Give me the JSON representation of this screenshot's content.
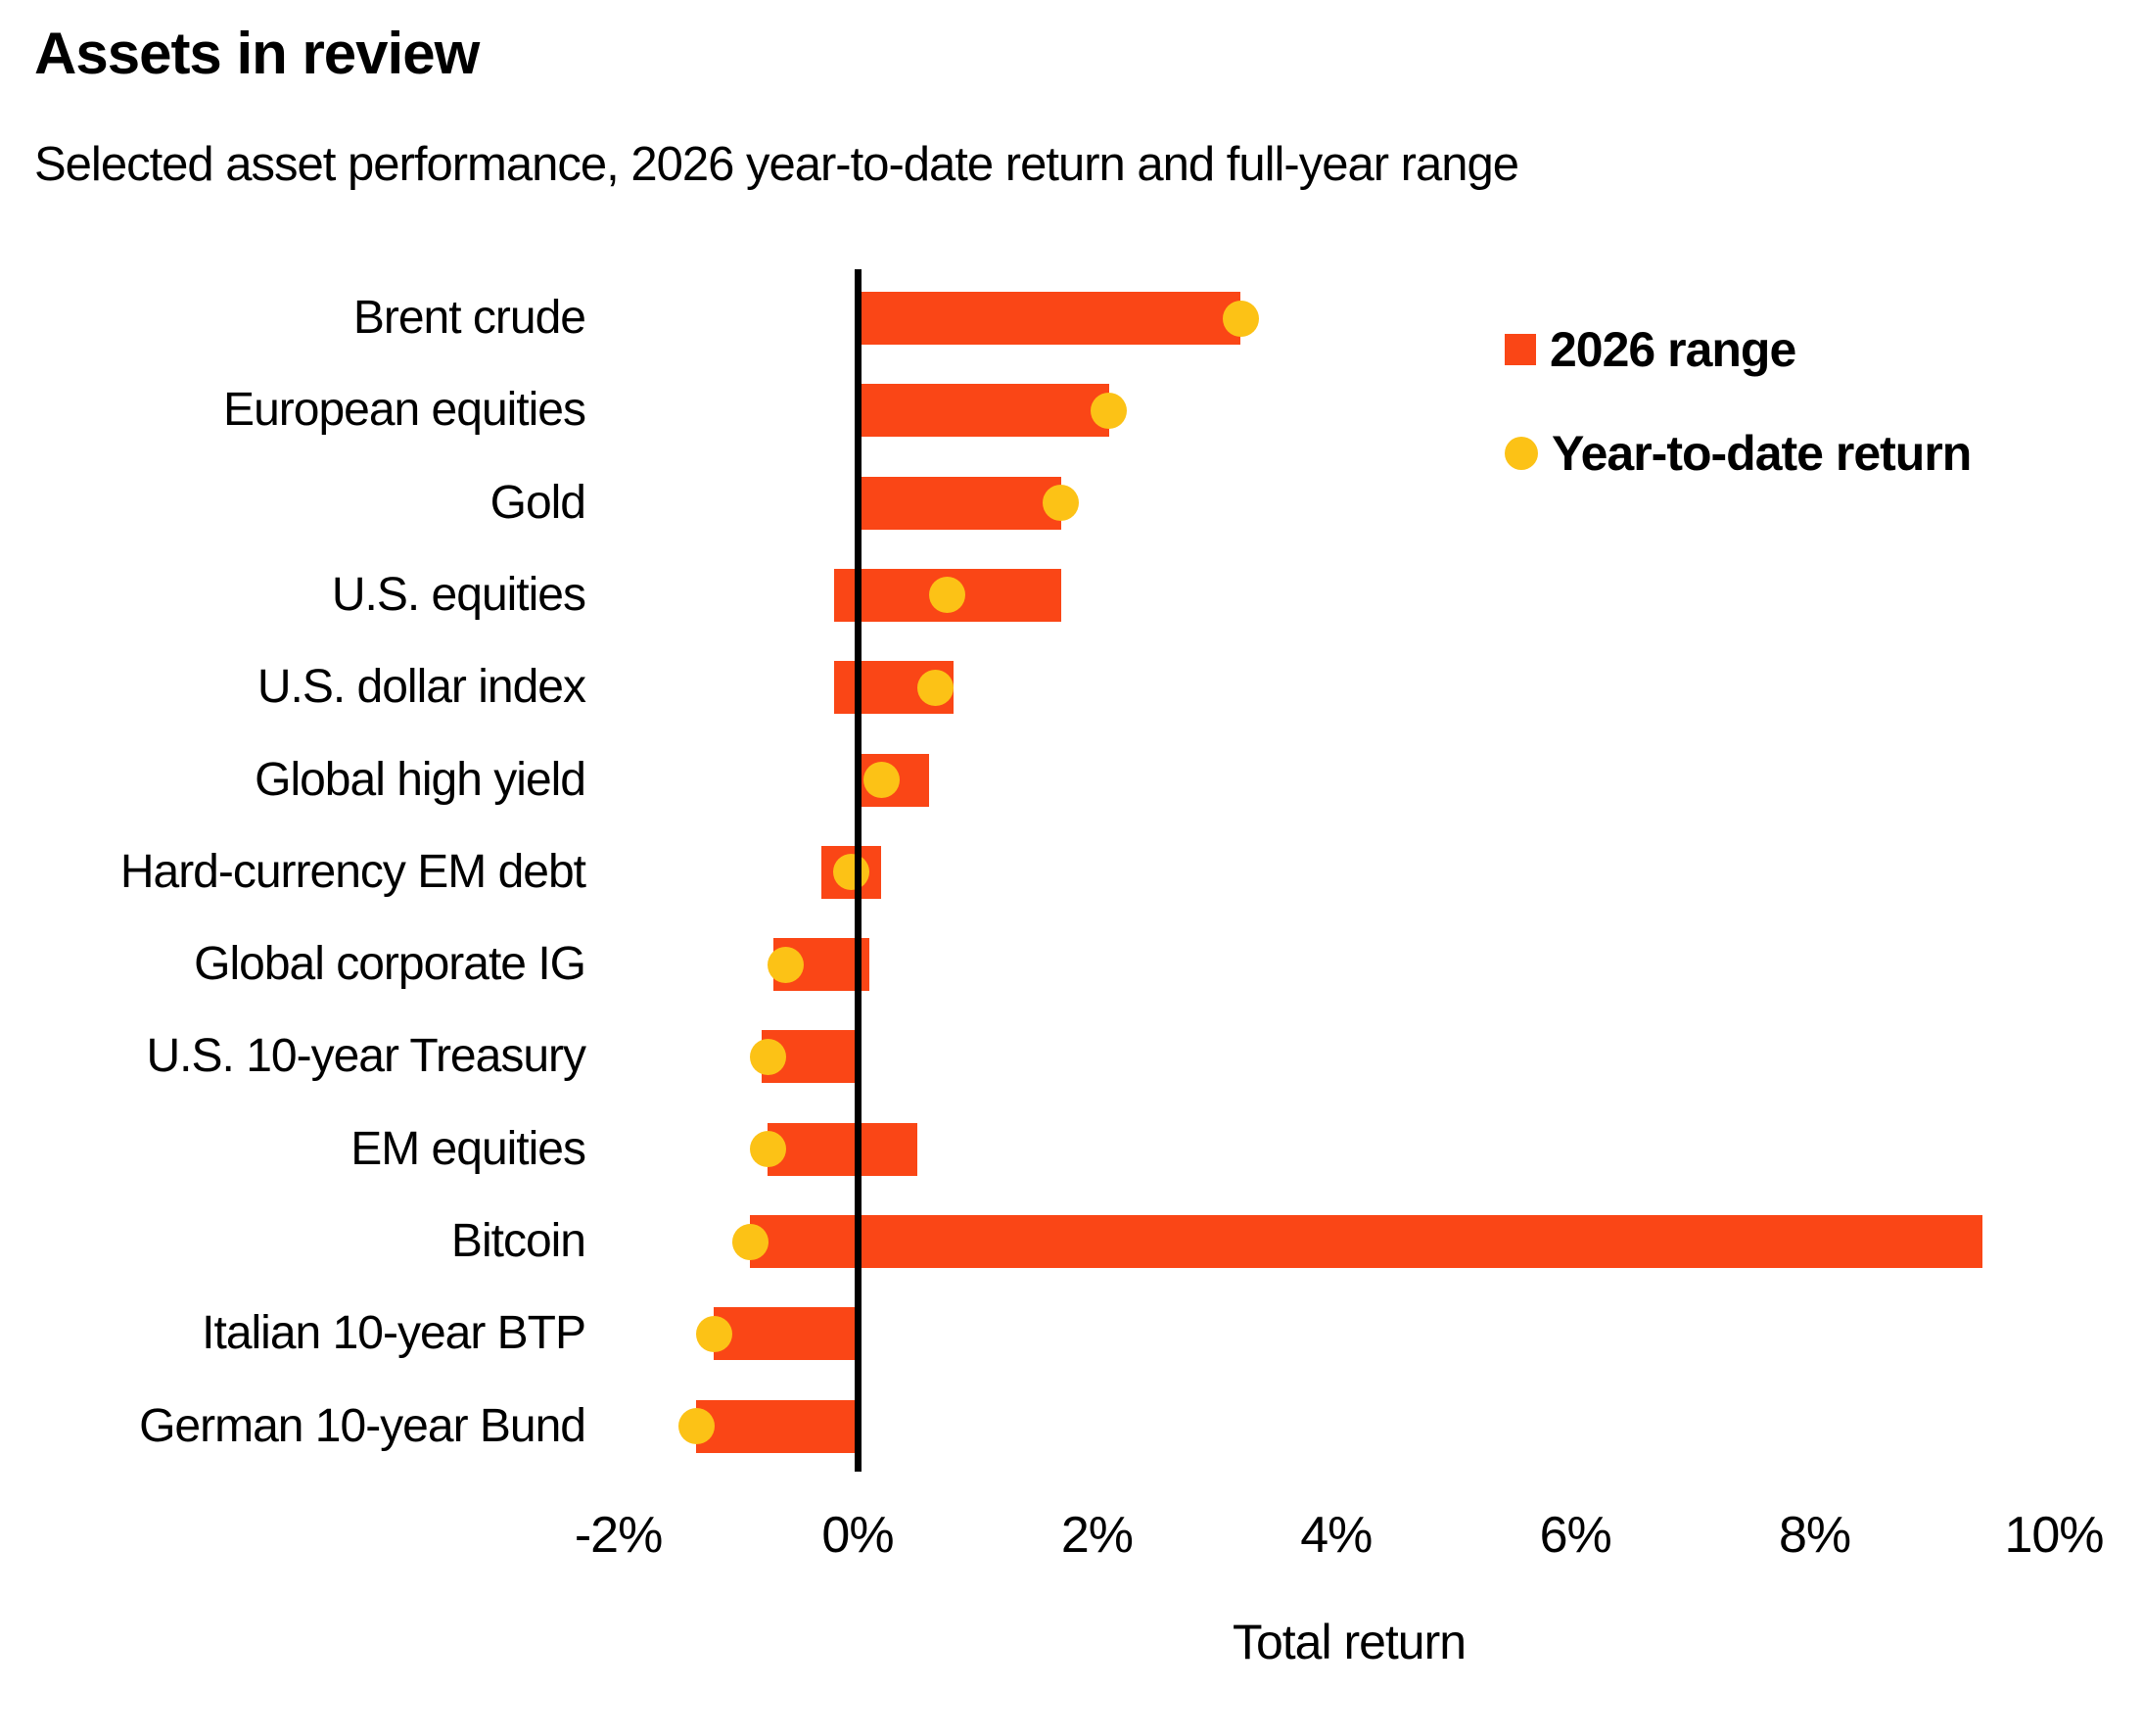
{
  "header": {
    "title": "Assets in review",
    "subtitle": "Selected asset performance, 2026 year-to-date return and full-year range"
  },
  "legend": {
    "items": [
      {
        "label": "2026 range",
        "shape": "square",
        "color": "#fa4616"
      },
      {
        "label": "Year-to-date return",
        "shape": "circle",
        "color": "#fcc216"
      }
    ]
  },
  "chart_data": {
    "type": "bar",
    "subtype": "horizontal-range-bar-with-dot",
    "title": "Assets in review",
    "subtitle": "Selected asset performance, 2026 year-to-date return and full-year range",
    "categories": [
      "Brent crude",
      "European equities",
      "Gold",
      "U.S. equities",
      "U.S. dollar index",
      "Global high yield",
      "Hard-currency EM debt",
      "Global corporate IG",
      "U.S. 10-year Treasury",
      "EM equities",
      "Bitcoin",
      "Italian 10-year BTP",
      "German 10-year Bund"
    ],
    "series": [
      {
        "name": "2026 range",
        "type": "range",
        "low": [
          0,
          0,
          0,
          -0.2,
          -0.2,
          0,
          -0.3,
          -0.7,
          -0.8,
          -0.75,
          -0.9,
          -1.2,
          -1.35
        ],
        "high": [
          3.2,
          2.1,
          1.7,
          1.7,
          0.8,
          0.6,
          0.2,
          0.1,
          0,
          0.5,
          9.4,
          0,
          0
        ]
      },
      {
        "name": "Year-to-date return",
        "type": "scatter",
        "values": [
          3.2,
          2.1,
          1.7,
          0.75,
          0.65,
          0.2,
          -0.05,
          -0.6,
          -0.75,
          -0.75,
          -0.9,
          -1.2,
          -1.35
        ]
      }
    ],
    "xlabel": "Total return",
    "x_tick_labels": [
      "-2%",
      "0%",
      "2%",
      "4%",
      "6%",
      "8%",
      "10%"
    ],
    "x_tick_values": [
      -2,
      0,
      2,
      4,
      6,
      8,
      10
    ],
    "xlim": [
      -2,
      10.75
    ],
    "grid": false,
    "zero_line": true,
    "legend_position": "top-right",
    "colors": {
      "range_bar": "#fa4616",
      "ytd_dot": "#fcc216",
      "zero_line": "#000000",
      "text": "#000000",
      "background": "#ffffff"
    }
  }
}
